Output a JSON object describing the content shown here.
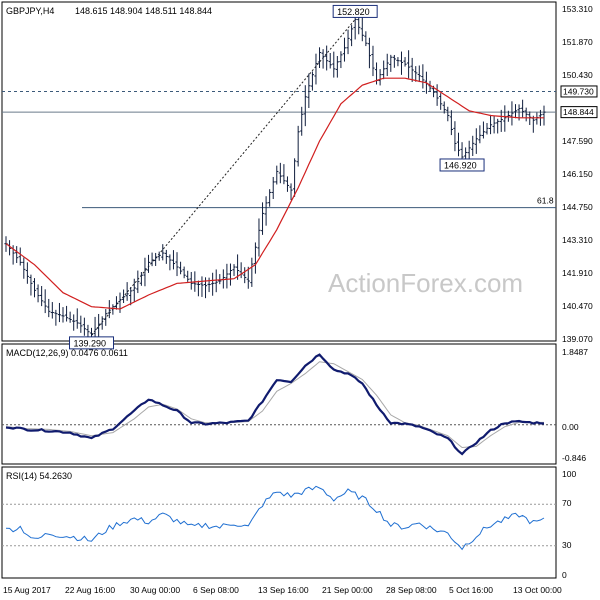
{
  "header": {
    "symbol": "GBPJPY,H4",
    "ohlc": "148.615 148.904 148.511 148.844"
  },
  "watermark": "ActionForex.com",
  "colors": {
    "price_bar": "#0f1d3c",
    "moving_average": "#d11f1f",
    "macd": "#101b6e",
    "macd_signal": "#a8a8a8",
    "rsi": "#1f6fd1",
    "level_line": "#3c5a7a"
  },
  "chart_data": [
    {
      "type": "ohlc",
      "title": "GBPJPY,H4",
      "yticks": [
        "153.310",
        "151.870",
        "150.430",
        "149.730",
        "148.844",
        "147.590",
        "146.150",
        "144.750",
        "143.310",
        "141.910",
        "140.470",
        "139.070"
      ],
      "ylim": [
        139.07,
        153.31
      ],
      "x_labels": [
        "15 Aug 2017",
        "22 Aug 16:00",
        "30 Aug 00:00",
        "6 Sep 08:00",
        "13 Sep 16:00",
        "21 Sep 00:00",
        "28 Sep 08:00",
        "5 Oct 16:00",
        "13 Oct 00:00"
      ],
      "series": [
        {
          "name": "GBPJPY H4",
          "anchors": [
            [
              0,
              143.2
            ],
            [
              4,
              142.4
            ],
            [
              8,
              141.2
            ],
            [
              12,
              140.3
            ],
            [
              16,
              140.1
            ],
            [
              20,
              139.8
            ],
            [
              24,
              139.3
            ],
            [
              28,
              140.2
            ],
            [
              32,
              140.8
            ],
            [
              36,
              141.3
            ],
            [
              40,
              142.4
            ],
            [
              44,
              142.8
            ],
            [
              48,
              142.2
            ],
            [
              52,
              141.5
            ],
            [
              56,
              141.4
            ],
            [
              60,
              141.6
            ],
            [
              64,
              142.2
            ],
            [
              68,
              141.6
            ],
            [
              72,
              144.5
            ],
            [
              76,
              146.3
            ],
            [
              80,
              145.5
            ],
            [
              82,
              148.0
            ],
            [
              84,
              149.5
            ],
            [
              88,
              151.4
            ],
            [
              92,
              150.7
            ],
            [
              95,
              151.6
            ],
            [
              98,
              152.82
            ],
            [
              101,
              151.8
            ],
            [
              104,
              150.2
            ],
            [
              108,
              151.2
            ],
            [
              112,
              150.9
            ],
            [
              116,
              150.4
            ],
            [
              120,
              149.7
            ],
            [
              124,
              148.7
            ],
            [
              126,
              147.5
            ],
            [
              128,
              146.92
            ],
            [
              132,
              147.7
            ],
            [
              136,
              148.3
            ],
            [
              140,
              148.6
            ],
            [
              144,
              149.0
            ],
            [
              148,
              148.5
            ],
            [
              151,
              148.844
            ]
          ]
        },
        {
          "name": "Moving average",
          "anchors": [
            [
              0,
              143.2
            ],
            [
              8,
              142.3
            ],
            [
              16,
              141.1
            ],
            [
              24,
              140.5
            ],
            [
              32,
              140.4
            ],
            [
              40,
              141.0
            ],
            [
              48,
              141.5
            ],
            [
              56,
              141.6
            ],
            [
              64,
              141.7
            ],
            [
              70,
              142.3
            ],
            [
              76,
              143.8
            ],
            [
              82,
              145.6
            ],
            [
              88,
              147.6
            ],
            [
              94,
              149.2
            ],
            [
              100,
              150.0
            ],
            [
              106,
              150.3
            ],
            [
              112,
              150.3
            ],
            [
              118,
              150.1
            ],
            [
              124,
              149.5
            ],
            [
              130,
              148.9
            ],
            [
              136,
              148.7
            ],
            [
              144,
              148.6
            ],
            [
              151,
              148.6
            ]
          ]
        }
      ],
      "annotations": [
        {
          "type": "label",
          "text": "152.820",
          "x": 98,
          "y": 152.82
        },
        {
          "type": "label",
          "text": "139.290",
          "x": 24,
          "y": 139.29
        },
        {
          "type": "label",
          "text": "146.920",
          "x": 128,
          "y": 146.92
        },
        {
          "type": "hline",
          "style": "dashed",
          "value": 149.73,
          "label": "149.730"
        },
        {
          "type": "hline",
          "style": "solid",
          "value": 148.844,
          "label": "148.844"
        },
        {
          "type": "hline",
          "style": "solid",
          "value": 144.75,
          "label": "61.8"
        },
        {
          "type": "trendline",
          "style": "dashed",
          "from": [
            24,
            139.29
          ],
          "to": [
            98,
            152.82
          ]
        }
      ]
    },
    {
      "type": "line",
      "title": "MACD(12,26,9) 0.0476 0.0611",
      "yticks": [
        "1.8487",
        "0.00",
        "-0.846"
      ],
      "ylim": [
        -0.846,
        1.8487
      ],
      "series": [
        {
          "name": "MACD",
          "anchors": [
            [
              0,
              -0.05
            ],
            [
              6,
              -0.12
            ],
            [
              12,
              -0.15
            ],
            [
              18,
              -0.2
            ],
            [
              24,
              -0.35
            ],
            [
              30,
              -0.1
            ],
            [
              36,
              0.35
            ],
            [
              40,
              0.65
            ],
            [
              44,
              0.5
            ],
            [
              48,
              0.35
            ],
            [
              52,
              0.05
            ],
            [
              56,
              0.02
            ],
            [
              62,
              0.05
            ],
            [
              68,
              0.1
            ],
            [
              72,
              0.6
            ],
            [
              76,
              1.15
            ],
            [
              80,
              1.1
            ],
            [
              84,
              1.5
            ],
            [
              88,
              1.8
            ],
            [
              92,
              1.4
            ],
            [
              96,
              1.3
            ],
            [
              100,
              1.05
            ],
            [
              104,
              0.5
            ],
            [
              108,
              0.05
            ],
            [
              112,
              0.02
            ],
            [
              116,
              -0.05
            ],
            [
              120,
              -0.2
            ],
            [
              124,
              -0.35
            ],
            [
              128,
              -0.75
            ],
            [
              132,
              -0.45
            ],
            [
              136,
              -0.15
            ],
            [
              140,
              0.05
            ],
            [
              144,
              0.08
            ],
            [
              148,
              0.05
            ],
            [
              151,
              0.05
            ]
          ]
        },
        {
          "name": "Signal",
          "anchors": [
            [
              0,
              -0.05
            ],
            [
              6,
              -0.1
            ],
            [
              12,
              -0.12
            ],
            [
              18,
              -0.17
            ],
            [
              24,
              -0.28
            ],
            [
              30,
              -0.2
            ],
            [
              36,
              0.15
            ],
            [
              40,
              0.45
            ],
            [
              44,
              0.52
            ],
            [
              48,
              0.4
            ],
            [
              52,
              0.15
            ],
            [
              56,
              0.05
            ],
            [
              62,
              0.05
            ],
            [
              68,
              0.08
            ],
            [
              72,
              0.35
            ],
            [
              76,
              0.85
            ],
            [
              80,
              1.05
            ],
            [
              84,
              1.3
            ],
            [
              88,
              1.6
            ],
            [
              92,
              1.55
            ],
            [
              96,
              1.35
            ],
            [
              100,
              1.15
            ],
            [
              104,
              0.75
            ],
            [
              108,
              0.25
            ],
            [
              112,
              0.05
            ],
            [
              116,
              -0.02
            ],
            [
              120,
              -0.15
            ],
            [
              124,
              -0.28
            ],
            [
              128,
              -0.58
            ],
            [
              132,
              -0.55
            ],
            [
              136,
              -0.28
            ],
            [
              140,
              -0.05
            ],
            [
              144,
              0.06
            ],
            [
              148,
              0.06
            ],
            [
              151,
              0.06
            ]
          ]
        }
      ],
      "reference_line": 0.0
    },
    {
      "type": "line",
      "title": "RSI(14) 54.2630",
      "yticks": [
        "100",
        "70",
        "30",
        "0"
      ],
      "ylim": [
        0,
        100
      ],
      "series": [
        {
          "name": "RSI",
          "anchors": [
            [
              0,
              45
            ],
            [
              4,
              48
            ],
            [
              8,
              35
            ],
            [
              12,
              42
            ],
            [
              16,
              40
            ],
            [
              20,
              38
            ],
            [
              24,
              35
            ],
            [
              28,
              45
            ],
            [
              32,
              52
            ],
            [
              36,
              56
            ],
            [
              40,
              53
            ],
            [
              44,
              60
            ],
            [
              48,
              54
            ],
            [
              52,
              48
            ],
            [
              56,
              50
            ],
            [
              60,
              48
            ],
            [
              64,
              52
            ],
            [
              68,
              48
            ],
            [
              72,
              70
            ],
            [
              76,
              82
            ],
            [
              80,
              78
            ],
            [
              84,
              83
            ],
            [
              88,
              86
            ],
            [
              92,
              75
            ],
            [
              96,
              82
            ],
            [
              100,
              76
            ],
            [
              104,
              65
            ],
            [
              108,
              50
            ],
            [
              112,
              48
            ],
            [
              116,
              52
            ],
            [
              120,
              46
            ],
            [
              124,
              42
            ],
            [
              126,
              35
            ],
            [
              128,
              28
            ],
            [
              132,
              40
            ],
            [
              136,
              50
            ],
            [
              140,
              55
            ],
            [
              144,
              60
            ],
            [
              148,
              52
            ],
            [
              151,
              54.26
            ]
          ]
        }
      ],
      "levels": [
        70,
        30
      ]
    }
  ]
}
